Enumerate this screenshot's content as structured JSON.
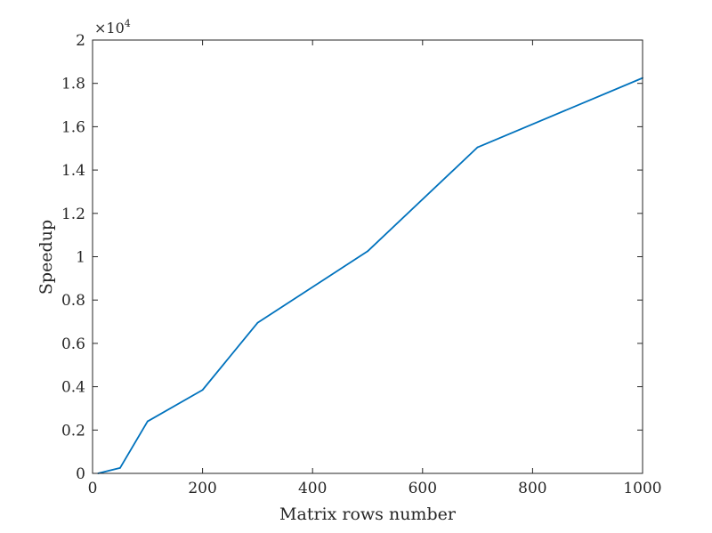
{
  "chart_data": {
    "type": "line",
    "title": "",
    "xlabel": "Matrix rows number",
    "ylabel": "Speedup",
    "xlim": [
      0,
      1000
    ],
    "ylim": [
      0,
      2
    ],
    "y_multiplier": "×10",
    "y_multiplier_exponent": "4",
    "xticks": [
      0,
      200,
      400,
      600,
      800,
      1000
    ],
    "yticks": [
      0,
      0.2,
      0.4,
      0.6,
      0.8,
      1,
      1.2,
      1.4,
      1.6,
      1.8,
      2
    ],
    "xtick_labels": [
      "0",
      "200",
      "400",
      "600",
      "800",
      "1000"
    ],
    "ytick_labels": [
      "0",
      "0.2",
      "0.4",
      "0.6",
      "0.8",
      "1",
      "1.2",
      "1.4",
      "1.6",
      "1.8",
      "2"
    ],
    "grid": false,
    "legend": "none",
    "series": [
      {
        "color": "#0072BD",
        "x": [
          10,
          50,
          100,
          200,
          300,
          500,
          700,
          1000
        ],
        "y": [
          0.0,
          0.025,
          0.24,
          0.385,
          0.695,
          1.025,
          1.505,
          1.825
        ]
      }
    ]
  }
}
